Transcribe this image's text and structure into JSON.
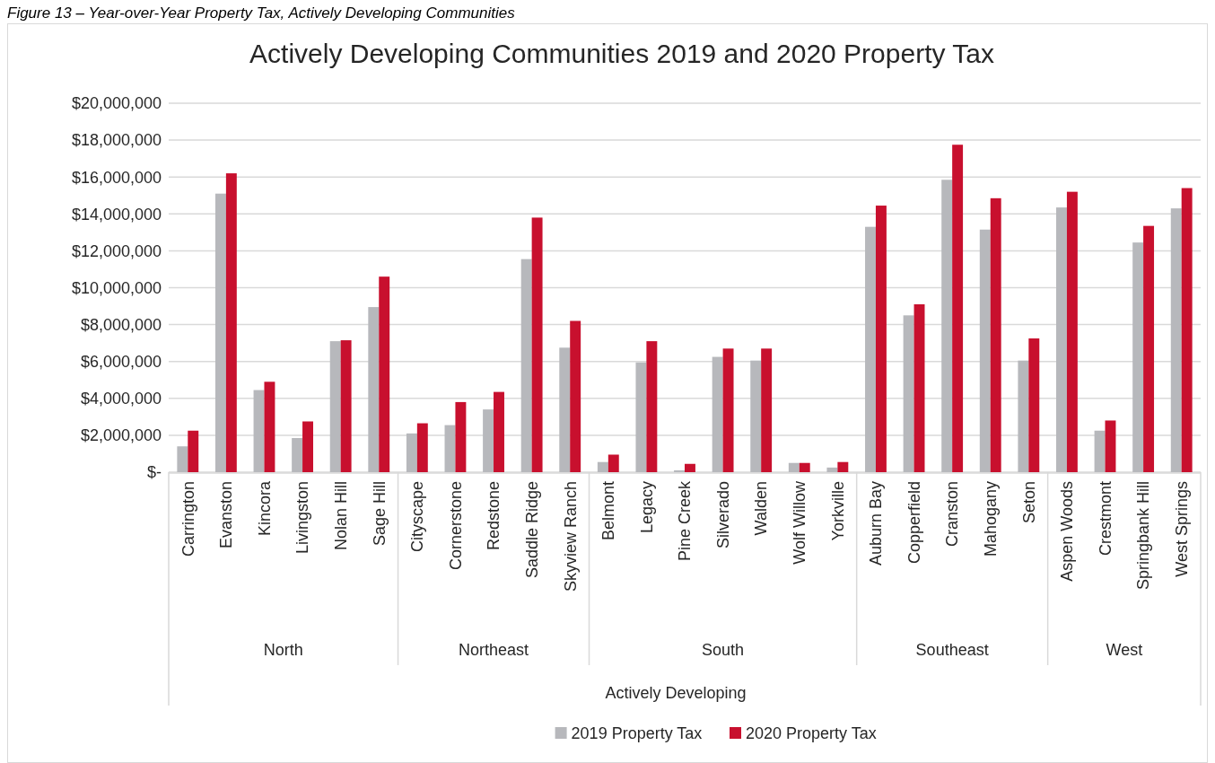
{
  "chart_data": {
    "type": "bar",
    "title": "Actively Developing Communities 2019 and 2020 Property Tax",
    "annotations": [
      "Figure 13 – Year-over-Year Property Tax, Actively Developing Communities",
      "North",
      "Northeast",
      "South",
      "Southeast",
      "West",
      "Actively Developing"
    ],
    "categories": [
      "Carrington",
      "Evanston",
      "Kincora",
      "Livingston",
      "Nolan Hill",
      "Sage Hill",
      "Cityscape",
      "Cornerstone",
      "Redstone",
      "Saddle Ridge",
      "Skyview Ranch",
      "Belmont",
      "Legacy",
      "Pine Creek",
      "Silverado",
      "Walden",
      "Wolf Willow",
      "Yorkville",
      "Auburn Bay",
      "Copperfield",
      "Cranston",
      "Mahogany",
      "Seton",
      "Aspen Woods",
      "Crestmont",
      "Springbank Hill",
      "West Springs"
    ],
    "series": [
      {
        "name": "2019 Property Tax",
        "color": "#b7b8bc",
        "values": [
          1400000,
          15100000,
          4450000,
          1850000,
          7100000,
          8950000,
          2100000,
          2550000,
          3400000,
          11550000,
          6750000,
          550000,
          5950000,
          100000,
          6250000,
          6050000,
          500000,
          250000,
          13300000,
          8500000,
          15850000,
          13150000,
          6050000,
          14350000,
          2250000,
          12450000,
          14300000
        ]
      },
      {
        "name": "2020 Property Tax",
        "color": "#c8102e",
        "values": [
          2250000,
          16200000,
          4900000,
          2750000,
          7150000,
          10600000,
          2650000,
          3800000,
          4350000,
          13800000,
          8200000,
          950000,
          7100000,
          450000,
          6700000,
          6700000,
          500000,
          550000,
          14450000,
          9100000,
          17750000,
          14850000,
          7250000,
          15200000,
          2800000,
          13350000,
          15400000
        ]
      }
    ],
    "ylim": [
      0,
      20000000
    ],
    "yticks": [
      {
        "value": 0,
        "label": "$-"
      },
      {
        "value": 2000000,
        "label": "$2,000,000"
      },
      {
        "value": 4000000,
        "label": "$4,000,000"
      },
      {
        "value": 6000000,
        "label": "$6,000,000"
      },
      {
        "value": 8000000,
        "label": "$8,000,000"
      },
      {
        "value": 10000000,
        "label": "$10,000,000"
      },
      {
        "value": 12000000,
        "label": "$12,000,000"
      },
      {
        "value": 14000000,
        "label": "$14,000,000"
      },
      {
        "value": 16000000,
        "label": "$16,000,000"
      },
      {
        "value": 18000000,
        "label": "$18,000,000"
      },
      {
        "value": 20000000,
        "label": "$20,000,000"
      }
    ],
    "grid": "y",
    "legend": "bottom"
  }
}
